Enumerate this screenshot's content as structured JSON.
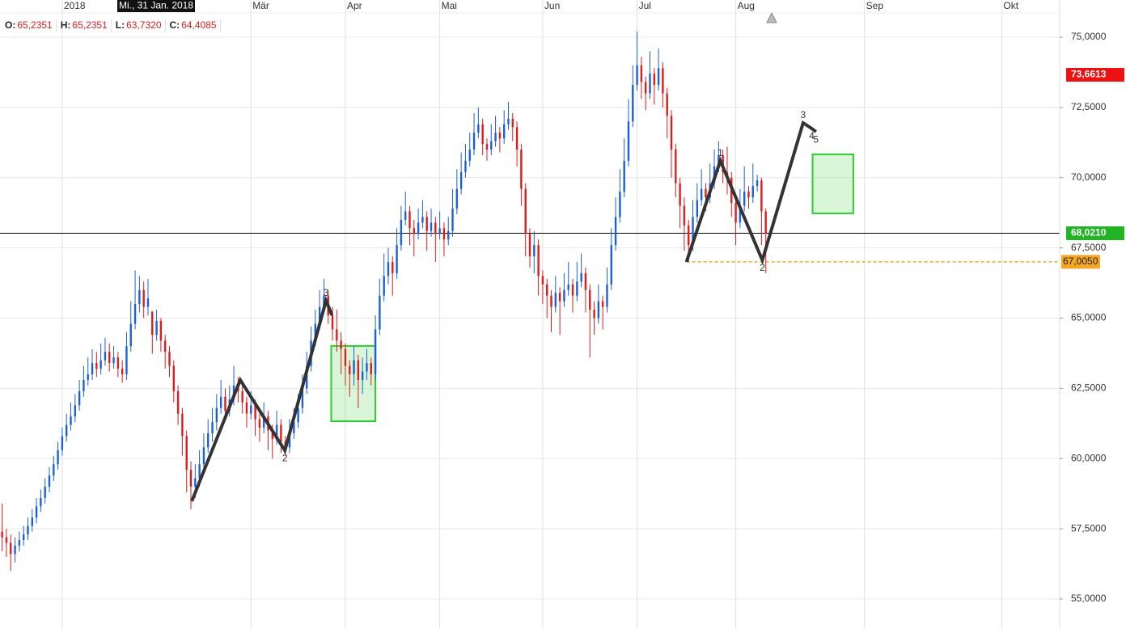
{
  "chart_data": {
    "type": "candlestick",
    "crosshair_label": "Mi., 31 Jan. 2018",
    "ohlc_header": [
      {
        "label": "O:",
        "value": "65,2351"
      },
      {
        "label": "H:",
        "value": "65,2351"
      },
      {
        "label": "L:",
        "value": "63,7320"
      },
      {
        "label": "C:",
        "value": "64,4085"
      }
    ],
    "up_color": "#1b5fdc",
    "down_color": "#dd1c1c",
    "grid": true,
    "xlim": [
      -0.5,
      246.5
    ],
    "xticks": [
      {
        "value": 14,
        "label": "2018"
      },
      {
        "value": 58,
        "label": "Mär"
      },
      {
        "value": 80,
        "label": "Apr"
      },
      {
        "value": 102,
        "label": "Mai"
      },
      {
        "value": 126,
        "label": "Jun"
      },
      {
        "value": 148,
        "label": "Jul"
      },
      {
        "value": 171,
        "label": "Aug"
      },
      {
        "value": 201,
        "label": "Sep"
      },
      {
        "value": 233,
        "label": "Okt"
      }
    ],
    "ylim": [
      53.935,
      76.324
    ],
    "yticks": [
      {
        "value": 55,
        "label": "55,0000"
      },
      {
        "value": 57.5,
        "label": "57,5000"
      },
      {
        "value": 60,
        "label": "60,0000"
      },
      {
        "value": 62.5,
        "label": "62,5000"
      },
      {
        "value": 65,
        "label": "65,0000"
      },
      {
        "value": 67.5,
        "label": "67,5000"
      },
      {
        "value": 70,
        "label": "70,0000"
      },
      {
        "value": 72.5,
        "label": "72,5000"
      },
      {
        "value": 75,
        "label": "75,0000"
      }
    ],
    "ohlc": [
      [
        57.4,
        58.4,
        56.7,
        57.2
      ],
      [
        57.2,
        57.5,
        56.5,
        57.0
      ],
      [
        57.0,
        57.3,
        56.0,
        56.6
      ],
      [
        56.6,
        57.2,
        56.3,
        56.9
      ],
      [
        56.9,
        57.4,
        56.7,
        57.1
      ],
      [
        57.1,
        57.6,
        56.9,
        57.3
      ],
      [
        57.3,
        57.9,
        57.1,
        57.6
      ],
      [
        57.6,
        58.2,
        57.4,
        57.9
      ],
      [
        57.9,
        58.6,
        57.7,
        58.3
      ],
      [
        58.3,
        58.9,
        58.1,
        58.6
      ],
      [
        58.6,
        59.3,
        58.4,
        59.0
      ],
      [
        59.0,
        59.7,
        58.8,
        59.4
      ],
      [
        59.4,
        60.1,
        59.2,
        59.8
      ],
      [
        59.8,
        60.6,
        59.6,
        60.3
      ],
      [
        60.3,
        61.1,
        60.1,
        60.8
      ],
      [
        60.8,
        61.6,
        60.6,
        61.2
      ],
      [
        61.2,
        62.0,
        61.0,
        61.5
      ],
      [
        61.5,
        62.3,
        61.3,
        61.9
      ],
      [
        61.9,
        62.8,
        61.7,
        62.4
      ],
      [
        62.4,
        63.3,
        62.2,
        62.8
      ],
      [
        62.8,
        63.6,
        62.6,
        63.0
      ],
      [
        63.0,
        63.9,
        62.8,
        63.4
      ],
      [
        63.4,
        63.8,
        62.9,
        63.2
      ],
      [
        63.2,
        64.1,
        63.0,
        63.5
      ],
      [
        63.5,
        64.3,
        63.3,
        63.8
      ],
      [
        63.8,
        64.1,
        63.1,
        63.4
      ],
      [
        63.4,
        64.0,
        63.2,
        63.6
      ],
      [
        63.6,
        63.8,
        62.9,
        63.2
      ],
      [
        63.2,
        63.5,
        62.7,
        63.0
      ],
      [
        63.0,
        64.5,
        62.8,
        64.0
      ],
      [
        64.0,
        65.6,
        63.8,
        64.8
      ],
      [
        64.8,
        66.7,
        64.6,
        65.5
      ],
      [
        65.5,
        66.5,
        65.2,
        66.0
      ],
      [
        66.0,
        66.3,
        65.0,
        65.4
      ],
      [
        65.4,
        66.4,
        65.1,
        65.7
      ],
      [
        65.2351,
        65.2351,
        63.732,
        64.4085
      ],
      [
        64.4,
        65.3,
        64.2,
        64.9
      ],
      [
        64.9,
        65.0,
        63.8,
        64.2
      ],
      [
        64.2,
        64.4,
        63.2,
        63.8
      ],
      [
        63.8,
        64.0,
        62.9,
        63.3
      ],
      [
        63.3,
        63.5,
        62.0,
        62.4
      ],
      [
        62.4,
        62.6,
        61.2,
        61.6
      ],
      [
        61.6,
        61.8,
        60.1,
        60.8
      ],
      [
        60.8,
        61.0,
        58.8,
        59.6
      ],
      [
        59.6,
        59.9,
        58.2,
        59.0
      ],
      [
        59.0,
        59.8,
        58.6,
        59.3
      ],
      [
        59.3,
        60.3,
        59.0,
        59.8
      ],
      [
        59.8,
        60.9,
        59.5,
        60.4
      ],
      [
        60.4,
        61.4,
        60.2,
        60.9
      ],
      [
        60.9,
        61.8,
        60.6,
        61.3
      ],
      [
        61.3,
        62.3,
        61.0,
        61.8
      ],
      [
        61.8,
        62.8,
        61.6,
        62.2
      ],
      [
        62.2,
        62.5,
        61.4,
        61.7
      ],
      [
        61.7,
        62.6,
        61.5,
        62.1
      ],
      [
        62.1,
        63.3,
        61.9,
        62.6
      ],
      [
        62.6,
        62.9,
        62.0,
        62.4
      ],
      [
        62.4,
        62.6,
        61.6,
        62.0
      ],
      [
        62.0,
        62.2,
        61.1,
        61.6
      ],
      [
        61.6,
        62.4,
        61.4,
        61.9
      ],
      [
        61.9,
        62.1,
        60.8,
        61.4
      ],
      [
        61.4,
        61.6,
        60.6,
        61.1
      ],
      [
        61.1,
        62.0,
        60.9,
        61.5
      ],
      [
        61.5,
        61.7,
        60.3,
        61.0
      ],
      [
        61.0,
        61.2,
        60.0,
        60.7
      ],
      [
        60.7,
        61.7,
        60.5,
        61.2
      ],
      [
        61.2,
        61.4,
        60.2,
        60.6
      ],
      [
        60.6,
        60.8,
        60.1,
        60.4
      ],
      [
        60.4,
        61.4,
        60.2,
        60.9
      ],
      [
        60.9,
        61.8,
        60.7,
        61.3
      ],
      [
        61.3,
        62.3,
        61.1,
        61.8
      ],
      [
        61.8,
        63.0,
        61.6,
        62.5
      ],
      [
        62.5,
        63.8,
        62.3,
        63.3
      ],
      [
        63.3,
        64.7,
        63.1,
        64.2
      ],
      [
        64.2,
        65.3,
        64.0,
        64.8
      ],
      [
        64.8,
        66.0,
        64.6,
        65.4
      ],
      [
        65.4,
        66.4,
        65.2,
        65.8
      ],
      [
        65.8,
        66.0,
        64.8,
        65.1
      ],
      [
        65.1,
        65.4,
        64.2,
        64.6
      ],
      [
        64.6,
        65.3,
        63.8,
        64.2
      ],
      [
        64.2,
        64.5,
        63.0,
        63.9
      ],
      [
        63.9,
        64.1,
        62.6,
        63.3
      ],
      [
        63.3,
        63.5,
        62.2,
        63.0
      ],
      [
        63.0,
        64.0,
        62.6,
        63.5
      ],
      [
        63.5,
        63.7,
        61.8,
        62.8
      ],
      [
        62.8,
        63.6,
        62.3,
        63.1
      ],
      [
        63.1,
        63.9,
        62.8,
        63.4
      ],
      [
        63.4,
        63.6,
        62.6,
        63.0
      ],
      [
        63.0,
        65.1,
        62.8,
        64.6
      ],
      [
        64.6,
        66.4,
        64.4,
        65.8
      ],
      [
        65.8,
        67.3,
        65.6,
        66.5
      ],
      [
        66.5,
        67.5,
        66.2,
        67.0
      ],
      [
        67.0,
        67.2,
        65.8,
        66.6
      ],
      [
        66.6,
        68.2,
        66.4,
        67.6
      ],
      [
        67.6,
        69.0,
        67.4,
        68.5
      ],
      [
        68.5,
        69.5,
        68.3,
        68.8
      ],
      [
        68.8,
        69.0,
        67.6,
        68.2
      ],
      [
        68.2,
        68.5,
        67.2,
        68.0
      ],
      [
        68.0,
        68.9,
        67.8,
        68.4
      ],
      [
        68.4,
        69.2,
        68.2,
        68.6
      ],
      [
        68.6,
        68.8,
        67.4,
        68.1
      ],
      [
        68.1,
        68.9,
        67.9,
        68.4
      ],
      [
        68.4,
        68.6,
        67.0,
        68.0
      ],
      [
        68.0,
        68.8,
        67.8,
        68.2
      ],
      [
        68.2,
        68.4,
        67.2,
        67.8
      ],
      [
        67.8,
        68.6,
        67.6,
        68.1
      ],
      [
        68.1,
        69.6,
        67.9,
        68.9
      ],
      [
        68.9,
        70.3,
        68.7,
        69.6
      ],
      [
        69.6,
        70.9,
        69.4,
        70.2
      ],
      [
        70.2,
        71.2,
        70.0,
        70.6
      ],
      [
        70.6,
        71.6,
        70.4,
        71.0
      ],
      [
        71.0,
        72.3,
        70.8,
        71.6
      ],
      [
        71.6,
        72.5,
        71.4,
        71.9
      ],
      [
        71.9,
        72.1,
        70.8,
        71.2
      ],
      [
        71.2,
        71.4,
        70.6,
        71.0
      ],
      [
        71.0,
        71.9,
        70.8,
        71.3
      ],
      [
        71.3,
        72.2,
        71.1,
        71.6
      ],
      [
        71.6,
        71.8,
        70.9,
        71.4
      ],
      [
        71.4,
        72.4,
        71.2,
        71.9
      ],
      [
        71.9,
        72.7,
        71.7,
        72.1
      ],
      [
        72.1,
        72.3,
        71.3,
        71.8
      ],
      [
        71.8,
        72.0,
        70.4,
        71.0
      ],
      [
        71.0,
        71.2,
        69.0,
        69.6
      ],
      [
        69.6,
        69.8,
        67.2,
        68.0
      ],
      [
        68.0,
        68.2,
        66.8,
        67.2
      ],
      [
        67.2,
        68.1,
        66.6,
        67.6
      ],
      [
        67.6,
        67.8,
        65.8,
        66.5
      ],
      [
        66.5,
        66.7,
        65.5,
        66.2
      ],
      [
        66.2,
        66.4,
        65.0,
        65.8
      ],
      [
        65.8,
        66.0,
        64.5,
        65.4
      ],
      [
        65.4,
        66.5,
        65.2,
        65.9
      ],
      [
        65.9,
        66.1,
        64.4,
        65.6
      ],
      [
        65.6,
        66.6,
        65.4,
        66.0
      ],
      [
        66.0,
        67.0,
        65.8,
        66.2
      ],
      [
        66.2,
        66.4,
        65.2,
        65.8
      ],
      [
        65.8,
        67.0,
        65.6,
        66.3
      ],
      [
        66.3,
        67.3,
        66.1,
        66.6
      ],
      [
        66.6,
        66.8,
        65.2,
        66.0
      ],
      [
        66.0,
        66.2,
        63.6,
        65.3
      ],
      [
        65.3,
        65.6,
        64.4,
        65.0
      ],
      [
        65.0,
        66.2,
        64.8,
        65.6
      ],
      [
        65.6,
        65.8,
        64.6,
        65.4
      ],
      [
        65.4,
        66.8,
        65.2,
        66.2
      ],
      [
        66.2,
        68.2,
        66.0,
        67.6
      ],
      [
        67.6,
        69.3,
        67.4,
        68.6
      ],
      [
        68.6,
        70.3,
        68.4,
        69.5
      ],
      [
        69.5,
        71.4,
        69.3,
        70.6
      ],
      [
        70.6,
        72.8,
        70.4,
        72.0
      ],
      [
        72.0,
        74.0,
        71.8,
        73.3
      ],
      [
        73.3,
        75.2,
        73.1,
        74.0
      ],
      [
        74.0,
        74.3,
        72.8,
        73.4
      ],
      [
        73.4,
        73.6,
        72.4,
        73.0
      ],
      [
        73.0,
        74.5,
        72.8,
        73.7
      ],
      [
        73.7,
        73.9,
        72.6,
        73.3
      ],
      [
        73.3,
        74.6,
        73.1,
        73.9
      ],
      [
        73.9,
        74.1,
        72.5,
        73.0
      ],
      [
        73.0,
        73.2,
        71.4,
        72.2
      ],
      [
        72.2,
        72.4,
        70.0,
        71.0
      ],
      [
        71.0,
        71.2,
        69.3,
        69.8
      ],
      [
        69.8,
        70.0,
        68.2,
        69.0
      ],
      [
        69.0,
        69.3,
        67.4,
        68.3
      ],
      [
        68.3,
        68.5,
        67.0,
        67.6
      ],
      [
        67.6,
        69.2,
        67.4,
        68.6
      ],
      [
        68.6,
        69.8,
        68.4,
        69.2
      ],
      [
        69.2,
        70.3,
        69.0,
        69.6
      ],
      [
        69.6,
        69.8,
        68.8,
        69.3
      ],
      [
        69.3,
        70.5,
        69.1,
        69.8
      ],
      [
        69.8,
        71.0,
        69.6,
        70.4
      ],
      [
        70.4,
        71.3,
        70.2,
        70.8
      ],
      [
        70.8,
        71.0,
        69.8,
        70.2
      ],
      [
        70.2,
        71.1,
        69.4,
        70.0
      ],
      [
        70.0,
        70.2,
        68.6,
        69.1
      ],
      [
        69.1,
        69.3,
        67.6,
        68.4
      ],
      [
        68.4,
        69.6,
        68.2,
        69.0
      ],
      [
        69.0,
        70.4,
        68.8,
        69.5
      ],
      [
        69.5,
        69.7,
        68.9,
        69.3
      ],
      [
        69.3,
        70.5,
        69.1,
        69.7
      ],
      [
        69.7,
        70.1,
        69.5,
        69.9
      ],
      [
        69.9,
        70.0,
        67.6,
        68.8
      ],
      [
        68.8,
        68.9,
        66.6,
        68.021
      ]
    ],
    "price_lines": [
      {
        "value": 68.021,
        "color": "#000000",
        "dashed": false,
        "from": -0.5
      },
      {
        "value": 67.005,
        "color": "#f5a623",
        "dashed": true,
        "from": 159.5
      }
    ],
    "price_tags": [
      {
        "value": 73.6613,
        "label": "73,6613",
        "color": "#ee1111"
      },
      {
        "value": 68.021,
        "label": "68,0210",
        "color": "#22b422"
      },
      {
        "value": 67.005,
        "label": "67,0050",
        "color": "#f5a623"
      }
    ],
    "waves": [
      {
        "x": [
          44.2,
          55.5,
          65.9,
          75.5,
          76.9
        ],
        "y": [
          58.48,
          62.8,
          60.29,
          65.62,
          65.1
        ],
        "labels": [
          null,
          null,
          "2",
          "3",
          null
        ]
      },
      {
        "x": [
          159.5,
          167.4,
          177.2,
          186.7,
          188.7,
          189.7
        ],
        "y": [
          67.0,
          70.6,
          67.06,
          71.95,
          71.75,
          71.63
        ],
        "labels": [
          null,
          "1",
          "2",
          "3",
          "4",
          "5"
        ]
      }
    ],
    "boxes": [
      {
        "x": [
          76.7,
          87.0
        ],
        "y": [
          61.33,
          64.01
        ]
      },
      {
        "x": [
          188.9,
          198.4
        ],
        "y": [
          68.73,
          70.83
        ]
      }
    ],
    "box_color": "#2ecc2e"
  }
}
